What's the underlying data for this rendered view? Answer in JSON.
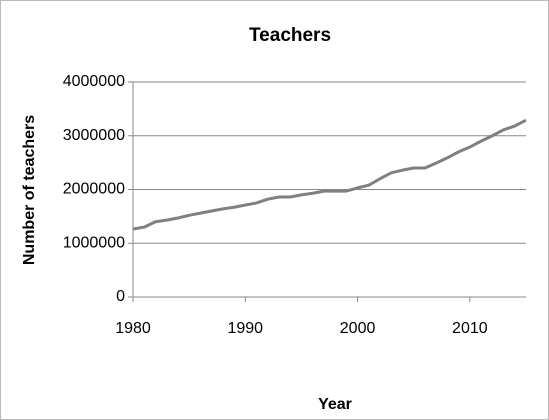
{
  "chart_data": {
    "type": "line",
    "title": "Teachers",
    "x_label": "Year",
    "y_label": "Number of teachers",
    "x": [
      1980,
      1981,
      1982,
      1983,
      1984,
      1985,
      1986,
      1987,
      1988,
      1989,
      1990,
      1991,
      1992,
      1993,
      1994,
      1995,
      1996,
      1997,
      1998,
      1999,
      2000,
      2001,
      2002,
      2003,
      2004,
      2005,
      2006,
      2007,
      2008,
      2009,
      2010,
      2011,
      2012,
      2013,
      2014,
      2015
    ],
    "series": [
      {
        "name": "Teachers",
        "color": "#808080",
        "values": [
          1265000,
          1300000,
          1400000,
          1430000,
          1470000,
          1520000,
          1560000,
          1600000,
          1640000,
          1670000,
          1710000,
          1750000,
          1820000,
          1860000,
          1860000,
          1900000,
          1930000,
          1970000,
          1970000,
          1970000,
          2030000,
          2080000,
          2200000,
          2310000,
          2360000,
          2400000,
          2400000,
          2490000,
          2590000,
          2700000,
          2790000,
          2900000,
          3000000,
          3110000,
          3180000,
          3290000
        ]
      }
    ],
    "xlim": [
      1980,
      2015
    ],
    "ylim": [
      0,
      4000000
    ],
    "xticks": [
      1980,
      1990,
      2000,
      2010
    ],
    "yticks": [
      0,
      1000000,
      2000000,
      3000000,
      4000000
    ],
    "grid": true
  }
}
